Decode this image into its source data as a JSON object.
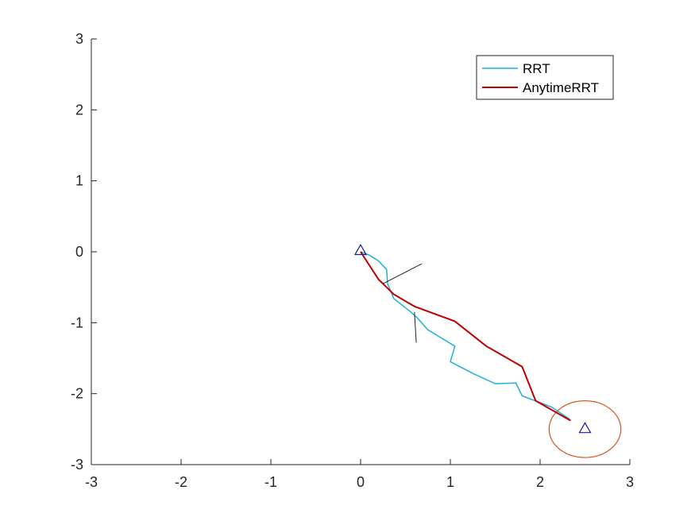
{
  "chart_data": {
    "type": "line",
    "title": "",
    "xlabel": "",
    "ylabel": "",
    "xlim": [
      -3,
      3
    ],
    "ylim": [
      -3,
      3
    ],
    "xticks": [
      "-3",
      "-2",
      "-1",
      "0",
      "1",
      "2",
      "3"
    ],
    "yticks": [
      "3",
      "2",
      "1",
      "0",
      "-1",
      "-2",
      "-3"
    ],
    "xtick_values": [
      -3,
      -2,
      -1,
      0,
      1,
      2,
      3
    ],
    "ytick_values": [
      3,
      2,
      1,
      0,
      -1,
      -2,
      -3
    ],
    "grid": false,
    "legend": {
      "position": "top-right",
      "entries": [
        "RRT",
        "AnytimeRRT"
      ]
    },
    "series": [
      {
        "name": "RRT",
        "color": "#1fb0d6",
        "x": [
          0.0,
          0.1,
          0.2,
          0.29,
          0.3,
          0.37,
          0.56,
          0.63,
          0.75,
          1.05,
          1.0,
          1.26,
          1.5,
          1.73,
          1.8,
          2.13,
          2.33
        ],
        "y": [
          0.0,
          -0.05,
          -0.13,
          -0.25,
          -0.45,
          -0.66,
          -0.85,
          -0.93,
          -1.1,
          -1.33,
          -1.55,
          -1.72,
          -1.86,
          -1.85,
          -2.03,
          -2.19,
          -2.36
        ]
      },
      {
        "name": "AnytimeRRT",
        "color": "#c00000",
        "x": [
          0.0,
          0.2,
          0.37,
          0.6,
          1.05,
          1.4,
          1.8,
          1.95,
          2.34
        ],
        "y": [
          0.0,
          -0.39,
          -0.6,
          -0.77,
          -0.98,
          -1.33,
          -1.62,
          -2.1,
          -2.38
        ]
      },
      {
        "name": "",
        "color": "#202020",
        "x": [
          0.25,
          0.68
        ],
        "y": [
          -0.45,
          -0.17
        ]
      },
      {
        "name": "",
        "color": "#202020",
        "x": [
          0.6,
          0.62
        ],
        "y": [
          -0.85,
          -1.28
        ]
      }
    ],
    "markers": [
      {
        "shape": "triangle",
        "x": 0.0,
        "y": 0.02,
        "color": "#1a1aa0"
      },
      {
        "shape": "triangle",
        "x": 2.5,
        "y": -2.49,
        "color": "#1a1aa0"
      }
    ],
    "circles": [
      {
        "cx": 2.5,
        "cy": -2.5,
        "r": 0.4,
        "color": "#d95319"
      }
    ]
  }
}
